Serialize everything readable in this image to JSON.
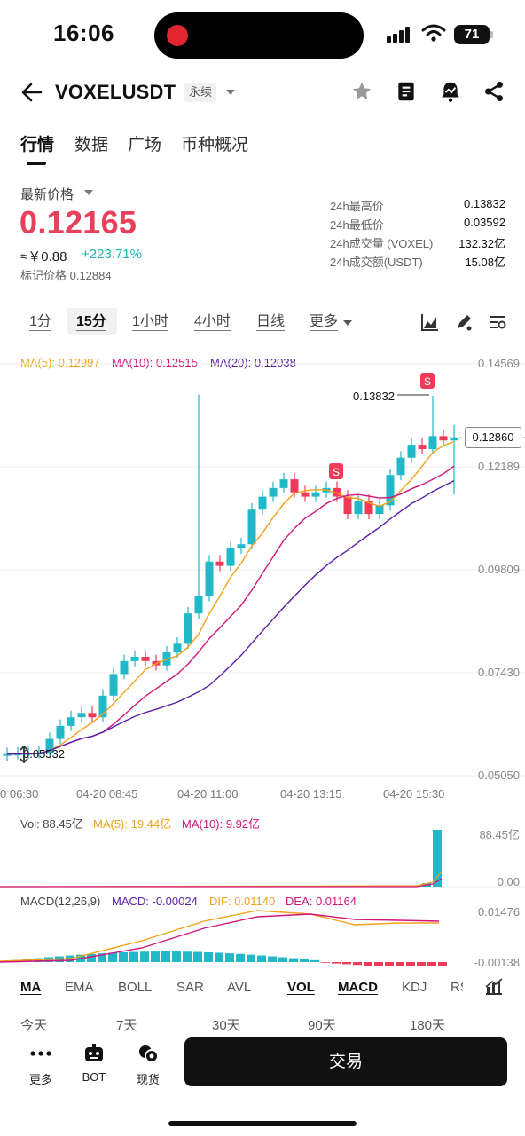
{
  "status": {
    "time": "16:06",
    "battery": "71"
  },
  "header": {
    "symbol": "VOXELUSDT",
    "tag": "永续"
  },
  "tabs": [
    "行情",
    "数据",
    "广场",
    "币种概况"
  ],
  "price": {
    "label": "最新价格",
    "last": "0.12165",
    "cny": "≈￥0.88",
    "change": "+223.71%",
    "mark": "标记价格 0.12884"
  },
  "stats": [
    {
      "k": "24h最高价",
      "v": "0.13832"
    },
    {
      "k": "24h最低价",
      "v": "0.03592"
    },
    {
      "k": "24h成交量 (VOXEL)",
      "v": "132.32亿"
    },
    {
      "k": "24h成交额(USDT)",
      "v": "15.08亿"
    }
  ],
  "intervals": [
    "1分",
    "15分",
    "1小时",
    "4小时",
    "日线",
    "更多"
  ],
  "ma_legend": {
    "ma5": "MA(5): 0.12997",
    "ma10": "MA(10): 0.12515",
    "ma20": "MA(20): 0.12038"
  },
  "price_axis": [
    "0.14569",
    "0.12189",
    "0.09809",
    "0.07430",
    "0.05050"
  ],
  "current_price_tag": "0.12860",
  "high_label": "0.13832",
  "low_label": "0.05532",
  "time_axis": [
    "0 06:30",
    "04-20 08:45",
    "04-20 11:00",
    "04-20 13:15",
    "04-20 15:30"
  ],
  "vol_legend": {
    "vol": "Vol: 88.45亿",
    "ma5": "MA(5): 19.44亿",
    "ma10": "MA(10): 9.92亿"
  },
  "vol_axis": [
    "88.45亿",
    "0.00"
  ],
  "macd_legend": {
    "name": "MACD(12,26,9)",
    "macd": "MACD: -0.00024",
    "dif": "DIF: 0.01140",
    "dea": "DEA: 0.01164"
  },
  "macd_axis": [
    "0.01476",
    "-0.00138"
  ],
  "indicators": [
    "MA",
    "EMA",
    "BOLL",
    "SAR",
    "AVL",
    "VOL",
    "MACD",
    "KDJ",
    "RS"
  ],
  "ranges": [
    "今天",
    "7天",
    "30天",
    "90天",
    "180天"
  ],
  "bottom": {
    "more": "更多",
    "bot": "BOT",
    "spot": "现货",
    "trade": "交易"
  },
  "colors": {
    "up": "#21b8c7",
    "down": "#ee3b58",
    "ma5": "#f0a21a",
    "ma10": "#d1157d",
    "ma20": "#5a1fa8"
  },
  "chart_data": {
    "type": "candlestick",
    "x": [
      "04-20 06:30",
      "04-20 08:45",
      "04-20 11:00",
      "04-20 13:15",
      "04-20 15:30"
    ],
    "ylim": [
      0.0505,
      0.14569
    ],
    "approx_close": [
      0.0555,
      0.0556,
      0.0557,
      0.0558,
      0.059,
      0.062,
      0.064,
      0.065,
      0.064,
      0.069,
      0.074,
      0.077,
      0.078,
      0.077,
      0.076,
      0.079,
      0.081,
      0.088,
      0.092,
      0.1,
      0.099,
      0.103,
      0.104,
      0.112,
      0.115,
      0.117,
      0.119,
      0.116,
      0.115,
      0.116,
      0.117,
      0.115,
      0.111,
      0.114,
      0.111,
      0.113,
      0.12,
      0.124,
      0.127,
      0.126,
      0.129,
      0.128,
      0.1286
    ]
  }
}
